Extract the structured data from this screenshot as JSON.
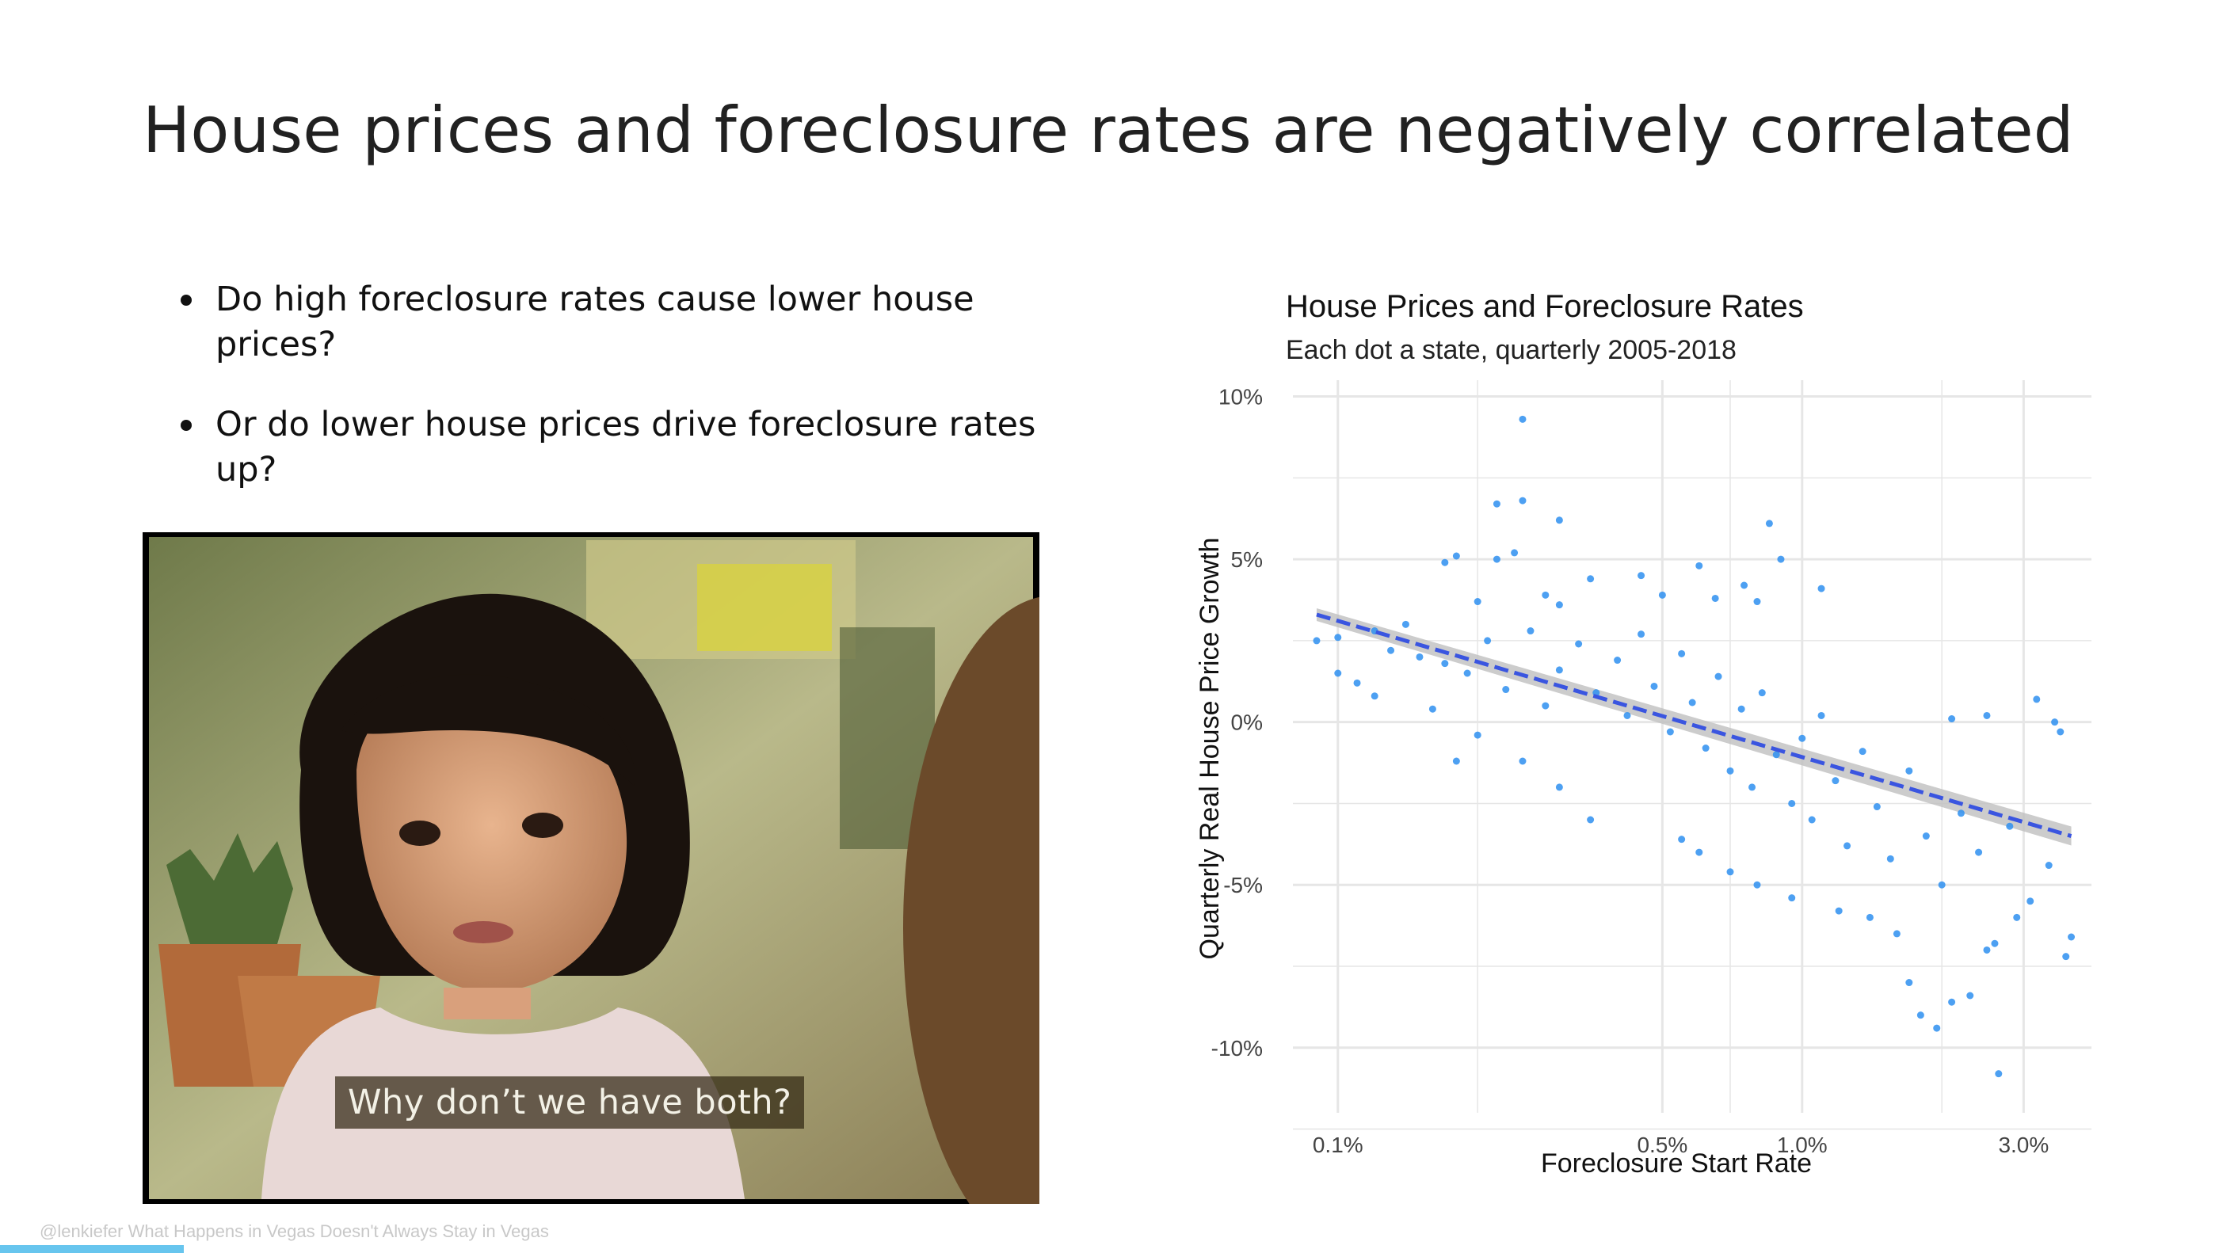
{
  "slide": {
    "title": "House prices and foreclosure rates are negatively correlated",
    "bullets": [
      "Do high foreclosure rates cause lower house prices?",
      "Or do lower house prices drive foreclosure rates up?"
    ],
    "meme_caption": "Why don’t we have both?",
    "footer": "@lenkiefer What Happens in Vegas Doesn't Always Stay in Vegas"
  },
  "colors": {
    "point": "#2e8ff0",
    "trend": "#3a55e0",
    "band": "#bfbfbf",
    "grid": "#e6e6e6",
    "progress": "#67c5ee"
  },
  "chart_data": {
    "type": "scatter",
    "title": "House Prices and Foreclosure Rates",
    "subtitle": "Each dot a state, quarterly 2005-2018",
    "xlabel": "Foreclosure Start Rate",
    "ylabel": "Quarterly Real House Price Growth",
    "x_scale": "log10",
    "xlim": [
      0.08,
      4.2
    ],
    "ylim": [
      -12,
      10.5
    ],
    "x_ticks": [
      {
        "value": 0.1,
        "label": "0.1%"
      },
      {
        "value": 0.5,
        "label": "0.5%"
      },
      {
        "value": 1.0,
        "label": "1.0%"
      },
      {
        "value": 3.0,
        "label": "3.0%"
      }
    ],
    "y_ticks": [
      {
        "value": 10,
        "label": "10%"
      },
      {
        "value": 5,
        "label": "5%"
      },
      {
        "value": 0,
        "label": "0%"
      },
      {
        "value": -5,
        "label": "-5%"
      },
      {
        "value": -10,
        "label": "-10%"
      }
    ],
    "trend_line": {
      "x": [
        0.09,
        3.8
      ],
      "y": [
        3.3,
        -3.5
      ]
    },
    "grid": true,
    "points": [
      [
        0.25,
        9.3
      ],
      [
        0.22,
        6.7
      ],
      [
        0.25,
        6.8
      ],
      [
        0.3,
        6.2
      ],
      [
        0.85,
        6.1
      ],
      [
        0.18,
        5.1
      ],
      [
        0.24,
        5.2
      ],
      [
        0.22,
        5.0
      ],
      [
        0.17,
        4.9
      ],
      [
        0.9,
        5.0
      ],
      [
        0.6,
        4.8
      ],
      [
        1.1,
        4.1
      ],
      [
        0.75,
        4.2
      ],
      [
        0.45,
        4.5
      ],
      [
        0.35,
        4.4
      ],
      [
        0.28,
        3.9
      ],
      [
        0.3,
        3.6
      ],
      [
        0.5,
        3.9
      ],
      [
        0.65,
        3.8
      ],
      [
        0.8,
        3.7
      ],
      [
        0.2,
        3.7
      ],
      [
        0.14,
        3.0
      ],
      [
        0.12,
        2.8
      ],
      [
        0.1,
        2.6
      ],
      [
        0.09,
        2.5
      ],
      [
        0.1,
        1.5
      ],
      [
        0.11,
        1.2
      ],
      [
        0.12,
        0.8
      ],
      [
        0.13,
        2.2
      ],
      [
        0.15,
        2.0
      ],
      [
        0.17,
        1.8
      ],
      [
        0.19,
        1.5
      ],
      [
        0.21,
        2.5
      ],
      [
        0.23,
        1.0
      ],
      [
        0.26,
        2.8
      ],
      [
        0.28,
        0.5
      ],
      [
        0.3,
        1.6
      ],
      [
        0.33,
        2.4
      ],
      [
        0.36,
        0.9
      ],
      [
        0.4,
        1.9
      ],
      [
        0.42,
        0.2
      ],
      [
        0.45,
        2.7
      ],
      [
        0.48,
        1.1
      ],
      [
        0.52,
        -0.3
      ],
      [
        0.55,
        2.1
      ],
      [
        0.58,
        0.6
      ],
      [
        0.62,
        -0.8
      ],
      [
        0.66,
        1.4
      ],
      [
        0.7,
        -1.5
      ],
      [
        0.74,
        0.4
      ],
      [
        0.78,
        -2.0
      ],
      [
        0.82,
        0.9
      ],
      [
        0.88,
        -1.0
      ],
      [
        0.95,
        -2.5
      ],
      [
        1.0,
        -0.5
      ],
      [
        1.05,
        -3.0
      ],
      [
        1.1,
        0.2
      ],
      [
        1.18,
        -1.8
      ],
      [
        1.25,
        -3.8
      ],
      [
        1.35,
        -0.9
      ],
      [
        1.45,
        -2.6
      ],
      [
        1.55,
        -4.2
      ],
      [
        1.7,
        -1.5
      ],
      [
        1.85,
        -3.5
      ],
      [
        2.0,
        -5.0
      ],
      [
        2.2,
        -2.8
      ],
      [
        2.4,
        -4.0
      ],
      [
        2.6,
        -6.8
      ],
      [
        2.8,
        -3.2
      ],
      [
        3.1,
        -5.5
      ],
      [
        3.4,
        -4.4
      ],
      [
        3.8,
        -6.6
      ],
      [
        3.7,
        -7.2
      ],
      [
        3.5,
        0.0
      ],
      [
        3.2,
        0.7
      ],
      [
        2.5,
        0.2
      ],
      [
        2.1,
        0.1
      ],
      [
        1.7,
        -8.0
      ],
      [
        1.8,
        -9.0
      ],
      [
        1.95,
        -9.4
      ],
      [
        2.1,
        -8.6
      ],
      [
        2.3,
        -8.4
      ],
      [
        1.6,
        -6.5
      ],
      [
        1.4,
        -6.0
      ],
      [
        1.2,
        -5.8
      ],
      [
        0.95,
        -5.4
      ],
      [
        0.8,
        -5.0
      ],
      [
        0.7,
        -4.6
      ],
      [
        0.6,
        -4.0
      ],
      [
        0.55,
        -3.6
      ],
      [
        2.65,
        -10.8
      ],
      [
        0.35,
        -3.0
      ],
      [
        0.3,
        -2.0
      ],
      [
        0.25,
        -1.2
      ],
      [
        0.2,
        -0.4
      ],
      [
        0.16,
        0.4
      ],
      [
        0.18,
        -1.2
      ],
      [
        3.6,
        -0.3
      ],
      [
        2.9,
        -6.0
      ],
      [
        2.5,
        -7.0
      ]
    ]
  }
}
